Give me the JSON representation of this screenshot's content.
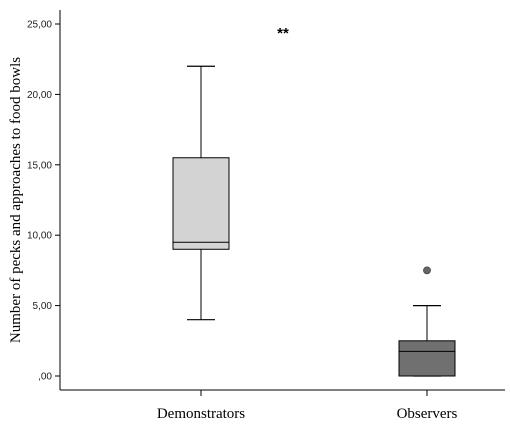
{
  "chart_data": {
    "type": "boxplot",
    "title": "",
    "xlabel": "",
    "ylabel": "Number of pecks and approaches to food bowls",
    "ylim": [
      0,
      25
    ],
    "yticks": [
      0,
      5,
      10,
      15,
      20,
      25
    ],
    "ytick_labels": [
      ",00",
      "5,00",
      "10,00",
      "15,00",
      "20,00",
      "25,00"
    ],
    "categories": [
      "Demonstrators",
      "Observers"
    ],
    "boxes": [
      {
        "category": "Demonstrators",
        "min": 4.0,
        "q1": 9.0,
        "median": 9.5,
        "q3": 15.5,
        "max": 22.0,
        "outliers": [],
        "color": "#d3d3d3"
      },
      {
        "category": "Observers",
        "min": 0.0,
        "q1": 0.0,
        "median": 1.75,
        "q3": 2.5,
        "max": 5.0,
        "outliers": [
          7.5
        ],
        "color": "#707070"
      }
    ],
    "annotation": "**",
    "grid": false,
    "legend": "none"
  }
}
